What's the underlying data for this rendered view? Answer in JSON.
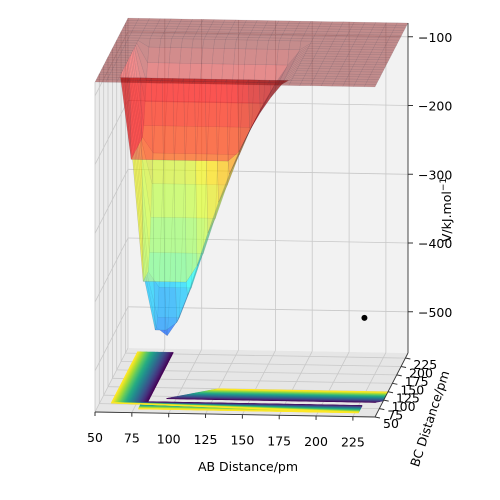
{
  "chart_data": {
    "type": "surface3d",
    "xlabel": "AB Distance/pm",
    "ylabel": "BC Distance/pm",
    "zlabel": "V/kJ.mol",
    "zlabel_sup": "−1",
    "x_ticks": [
      "50",
      "75",
      "100",
      "125",
      "150",
      "175",
      "200",
      "225"
    ],
    "y_ticks": [
      "50",
      "75",
      "100",
      "125",
      "150",
      "175",
      "200",
      "225"
    ],
    "z_ticks": [
      "−500",
      "−400",
      "−300",
      "−200",
      "−100"
    ],
    "xlim": [
      50,
      240
    ],
    "ylim": [
      50,
      240
    ],
    "zlim": [
      -560,
      -80
    ],
    "colormap_surface": "jet",
    "colormap_contour": "viridis",
    "marked_point": {
      "x": 230,
      "y": 74,
      "z": -428
    },
    "grid": true,
    "colors": {
      "pane": "#f2f2f2",
      "grid": "#c8c8c8",
      "point": "#000000"
    }
  }
}
